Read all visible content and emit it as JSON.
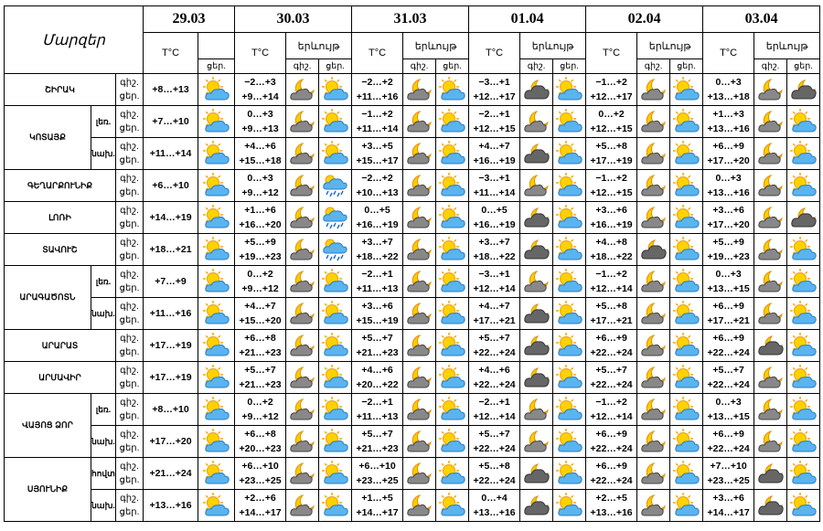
{
  "header": {
    "region_label": "Մարզեր",
    "dates": [
      "29.03",
      "30.03",
      "31.03",
      "01.04",
      "02.04",
      "03.04"
    ],
    "temp_label": "T°C",
    "phenomenon_label": "երևույթ",
    "night_label": "գիշ.",
    "day_label": "ցեր."
  },
  "regions": [
    {
      "name": "ՇԻՐԱԿ",
      "rows": [
        {
          "first_day": "+8…+13",
          "temps": [
            [
              "−2…+3",
              "+9…+14"
            ],
            [
              "−2…+2",
              "+11…+16"
            ],
            [
              "−3…+1",
              "+12…+17"
            ],
            [
              "−1…+2",
              "+12…+17"
            ],
            [
              "0…+3",
              "+13…+18"
            ]
          ]
        }
      ]
    },
    {
      "name": "ԿՈՏԱՅՔ",
      "rows": [
        {
          "zone": "լեռ.",
          "first_day": "+7…+10",
          "temps": [
            [
              "0…+3",
              "+9…+13"
            ],
            [
              "−1…+2",
              "+11…+14"
            ],
            [
              "−2…+1",
              "+12…+15"
            ],
            [
              "0…+2",
              "+12…+15"
            ],
            [
              "+1…+3",
              "+13…+16"
            ]
          ]
        },
        {
          "zone": "նախ.",
          "first_day": "+11…+14",
          "temps": [
            [
              "+4…+6",
              "+15…+18"
            ],
            [
              "+3…+5",
              "+15…+17"
            ],
            [
              "+4…+7",
              "+16…+19"
            ],
            [
              "+5…+8",
              "+17…+19"
            ],
            [
              "+6…+9",
              "+17…+20"
            ]
          ]
        }
      ]
    },
    {
      "name": "ԳԵՂԱՐՔՈՒՆԻՔ",
      "rows": [
        {
          "first_day": "+6…+10",
          "temps": [
            [
              "0…+3",
              "+9…+12"
            ],
            [
              "−2…+2",
              "+10…+13"
            ],
            [
              "−3…+1",
              "+11…+14"
            ],
            [
              "−1…+2",
              "+12…+15"
            ],
            [
              "0…+3",
              "+13…+16"
            ]
          ]
        }
      ]
    },
    {
      "name": "ԼՈՌԻ",
      "rows": [
        {
          "first_day": "+14…+19",
          "temps": [
            [
              "+1…+6",
              "+16…+20"
            ],
            [
              "0…+5",
              "+16…+19"
            ],
            [
              "0…+5",
              "+16…+19"
            ],
            [
              "+3…+6",
              "+16…+19"
            ],
            [
              "+3…+6",
              "+17…+20"
            ]
          ]
        }
      ]
    },
    {
      "name": "ՏԱՎՈՒՇ",
      "rows": [
        {
          "first_day": "+18…+21",
          "temps": [
            [
              "+5…+9",
              "+19…+23"
            ],
            [
              "+3…+7",
              "+18…+22"
            ],
            [
              "+3…+7",
              "+18…+22"
            ],
            [
              "+4…+8",
              "+18…+22"
            ],
            [
              "+5…+9",
              "+19…+23"
            ]
          ]
        }
      ]
    },
    {
      "name": "ԱՐԱԳԱԾՈՏՆ",
      "rows": [
        {
          "zone": "լեռ.",
          "first_day": "+7…+9",
          "temps": [
            [
              "0…+2",
              "+9…+12"
            ],
            [
              "−2…+1",
              "+11…+13"
            ],
            [
              "−3…+1",
              "+12…+14"
            ],
            [
              "−1…+2",
              "+12…+14"
            ],
            [
              "0…+3",
              "+13…+15"
            ]
          ]
        },
        {
          "zone": "նախ.",
          "first_day": "+11…+16",
          "temps": [
            [
              "+4…+7",
              "+15…+20"
            ],
            [
              "+3…+6",
              "+15…+19"
            ],
            [
              "+4…+7",
              "+17…+21"
            ],
            [
              "+5…+8",
              "+17…+21"
            ],
            [
              "+6…+9",
              "+17…+21"
            ]
          ]
        }
      ]
    },
    {
      "name": "ԱՐԱՐԱՏ",
      "rows": [
        {
          "first_day": "+17…+19",
          "temps": [
            [
              "+6…+8",
              "+21…+23"
            ],
            [
              "+5…+7",
              "+21…+23"
            ],
            [
              "+5…+7",
              "+22…+24"
            ],
            [
              "+6…+9",
              "+22…+24"
            ],
            [
              "+6…+9",
              "+22…+24"
            ]
          ]
        }
      ]
    },
    {
      "name": "ԱՐՄԱՎԻՐ",
      "rows": [
        {
          "first_day": "+17…+19",
          "temps": [
            [
              "+5…+7",
              "+21…+23"
            ],
            [
              "+4…+6",
              "+20…+22"
            ],
            [
              "+4…+6",
              "+22…+24"
            ],
            [
              "+5…+7",
              "+22…+24"
            ],
            [
              "+5…+7",
              "+22…+24"
            ]
          ]
        }
      ]
    },
    {
      "name": "ՎԱՅՈՑ ՁՈՐ",
      "rows": [
        {
          "zone": "լեռ.",
          "first_day": "+8…+10",
          "temps": [
            [
              "0…+2",
              "+9…+12"
            ],
            [
              "−2…+1",
              "+11…+13"
            ],
            [
              "−2…+1",
              "+12…+14"
            ],
            [
              "−1…+2",
              "+12…+14"
            ],
            [
              "0…+3",
              "+13…+15"
            ]
          ]
        },
        {
          "zone": "նախ.",
          "first_day": "+17…+20",
          "temps": [
            [
              "+6…+8",
              "+20…+23"
            ],
            [
              "+5…+7",
              "+21…+23"
            ],
            [
              "+5…+7",
              "+22…+24"
            ],
            [
              "+6…+9",
              "+22…+24"
            ],
            [
              "+6…+9",
              "+22…+24"
            ]
          ]
        }
      ]
    },
    {
      "name": "ՍՅՈՒՆԻՔ",
      "rows": [
        {
          "zone": "հովտ.",
          "first_day": "+21…+24",
          "temps": [
            [
              "+6…+10",
              "+23…+25"
            ],
            [
              "+6…+10",
              "+23…+25"
            ],
            [
              "+5…+8",
              "+22…+24"
            ],
            [
              "+6…+9",
              "+22…+24"
            ],
            [
              "+7…+10",
              "+23…+25"
            ]
          ]
        },
        {
          "zone": "նախ.",
          "first_day": "+13…+16",
          "temps": [
            [
              "+2…+6",
              "+14…+17"
            ],
            [
              "+1…+5",
              "+14…+17"
            ],
            [
              "0…+4",
              "+13…+16"
            ],
            [
              "+2…+5",
              "+13…+16"
            ],
            [
              "+3…+6",
              "+14…+17"
            ]
          ]
        }
      ]
    }
  ]
}
